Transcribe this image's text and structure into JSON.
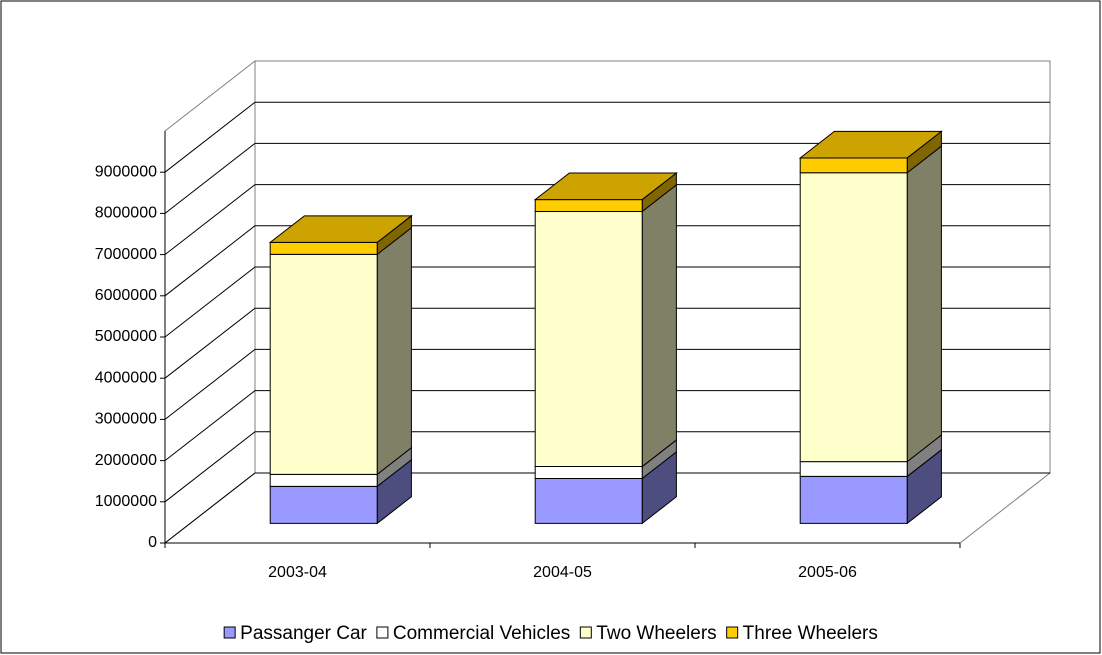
{
  "chart_data": {
    "type": "bar3d_stacked",
    "categories": [
      "2003-04",
      "2004-05",
      "2005-06"
    ],
    "series": [
      {
        "name": "Passanger Car",
        "color": "#9999ff",
        "values": [
          900000,
          1090000,
          1140000
        ]
      },
      {
        "name": "Commercial Vehicles",
        "color": "#ffffff",
        "values": [
          290000,
          290000,
          360000
        ]
      },
      {
        "name": "Two Wheelers",
        "color": "#ffffcc",
        "values": [
          5340000,
          6190000,
          7010000
        ]
      },
      {
        "name": "Three Wheelers",
        "color": "#ffcc00",
        "values": [
          290000,
          290000,
          360000
        ]
      }
    ],
    "ylim": [
      0,
      10000000
    ],
    "yticks": [
      0,
      1000000,
      2000000,
      3000000,
      4000000,
      5000000,
      6000000,
      7000000,
      8000000,
      9000000
    ],
    "grid": true
  }
}
